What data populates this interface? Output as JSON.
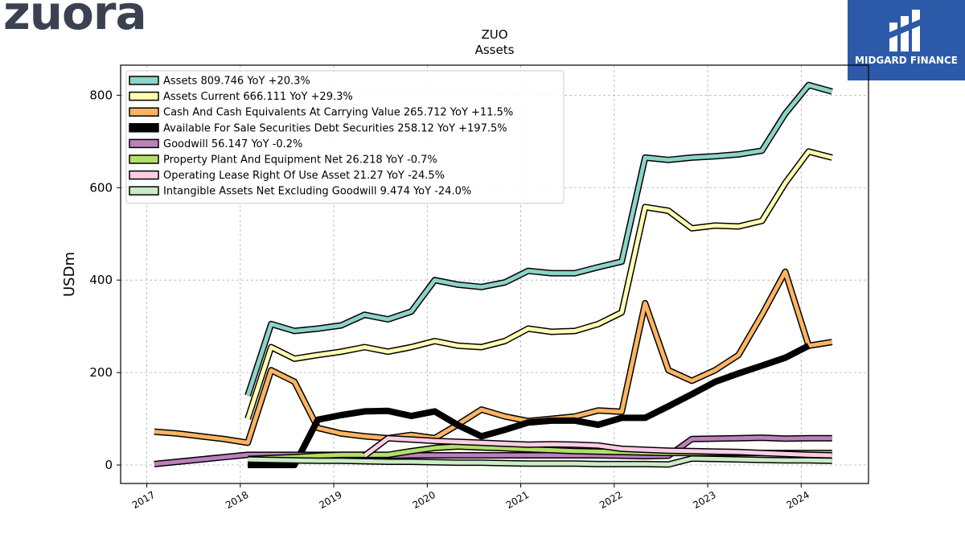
{
  "logo": {
    "text": "zuora"
  },
  "badge": {
    "text": "MIDGARD FINANCE"
  },
  "chart_data": {
    "type": "line",
    "title": "ZUO",
    "subtitle": "Assets",
    "xlabel": "",
    "ylabel": "USDm",
    "xlim": [
      2016.72,
      2024.72
    ],
    "ylim": [
      -40,
      865
    ],
    "x_ticks": [
      2017,
      2018,
      2019,
      2020,
      2021,
      2022,
      2023,
      2024
    ],
    "x_tick_labels": [
      "2017",
      "2018",
      "2019",
      "2020",
      "2021",
      "2022",
      "2023",
      "2024"
    ],
    "y_ticks": [
      0,
      200,
      400,
      600,
      800
    ],
    "y_tick_labels": [
      "0",
      "200",
      "400",
      "600",
      "800"
    ],
    "grid": true,
    "legend": "top-left",
    "series": [
      {
        "name": "Assets",
        "legend_label": "Assets  809.746 YoY +20.3%",
        "color": "#8dd3c7",
        "width": 5,
        "points": [
          [
            2018.08,
            150
          ],
          [
            2018.33,
            305
          ],
          [
            2018.58,
            290
          ],
          [
            2018.83,
            295
          ],
          [
            2019.08,
            302
          ],
          [
            2019.33,
            325
          ],
          [
            2019.58,
            315
          ],
          [
            2019.83,
            332
          ],
          [
            2020.08,
            400
          ],
          [
            2020.33,
            390
          ],
          [
            2020.58,
            385
          ],
          [
            2020.83,
            395
          ],
          [
            2021.08,
            420
          ],
          [
            2021.33,
            415
          ],
          [
            2021.58,
            415
          ],
          [
            2021.83,
            428
          ],
          [
            2022.08,
            440
          ],
          [
            2022.33,
            665
          ],
          [
            2022.58,
            660
          ],
          [
            2022.83,
            665
          ],
          [
            2023.08,
            668
          ],
          [
            2023.33,
            672
          ],
          [
            2023.58,
            680
          ],
          [
            2023.83,
            760
          ],
          [
            2024.08,
            822
          ],
          [
            2024.33,
            808
          ]
        ]
      },
      {
        "name": "Assets Current",
        "legend_label": "Assets Current  666.111 YoY +29.3%",
        "color": "#ffffb3",
        "width": 5,
        "points": [
          [
            2018.08,
            100
          ],
          [
            2018.33,
            255
          ],
          [
            2018.58,
            230
          ],
          [
            2018.83,
            238
          ],
          [
            2019.08,
            245
          ],
          [
            2019.33,
            255
          ],
          [
            2019.58,
            245
          ],
          [
            2019.83,
            255
          ],
          [
            2020.08,
            268
          ],
          [
            2020.33,
            258
          ],
          [
            2020.58,
            255
          ],
          [
            2020.83,
            268
          ],
          [
            2021.08,
            295
          ],
          [
            2021.33,
            288
          ],
          [
            2021.58,
            290
          ],
          [
            2021.83,
            305
          ],
          [
            2022.08,
            330
          ],
          [
            2022.33,
            558
          ],
          [
            2022.58,
            550
          ],
          [
            2022.83,
            512
          ],
          [
            2023.08,
            518
          ],
          [
            2023.33,
            516
          ],
          [
            2023.58,
            528
          ],
          [
            2023.83,
            610
          ],
          [
            2024.08,
            678
          ],
          [
            2024.33,
            665
          ]
        ]
      },
      {
        "name": "Cash And Cash Equivalents At Carrying Value",
        "legend_label": "Cash And Cash Equivalents At Carrying Value  265.712 YoY +11.5%",
        "color": "#fdb462",
        "width": 5,
        "points": [
          [
            2017.08,
            72
          ],
          [
            2017.33,
            68
          ],
          [
            2017.58,
            62
          ],
          [
            2017.83,
            56
          ],
          [
            2018.08,
            48
          ],
          [
            2018.33,
            205
          ],
          [
            2018.58,
            180
          ],
          [
            2018.83,
            80
          ],
          [
            2019.08,
            68
          ],
          [
            2019.33,
            62
          ],
          [
            2019.58,
            58
          ],
          [
            2019.83,
            65
          ],
          [
            2020.08,
            58
          ],
          [
            2020.33,
            88
          ],
          [
            2020.58,
            120
          ],
          [
            2020.83,
            105
          ],
          [
            2021.08,
            95
          ],
          [
            2021.33,
            100
          ],
          [
            2021.58,
            105
          ],
          [
            2021.83,
            118
          ],
          [
            2022.08,
            115
          ],
          [
            2022.33,
            350
          ],
          [
            2022.58,
            205
          ],
          [
            2022.83,
            182
          ],
          [
            2023.08,
            205
          ],
          [
            2023.33,
            238
          ],
          [
            2023.58,
            325
          ],
          [
            2023.83,
            418
          ],
          [
            2024.08,
            258
          ],
          [
            2024.33,
            266
          ]
        ]
      },
      {
        "name": "Available For Sale Securities Debt Securities",
        "legend_label": "Available For Sale Securities Debt Securities  258.12 YoY +197.5%",
        "color": "#000000",
        "width": 7,
        "points": [
          [
            2018.08,
            0
          ],
          [
            2018.33,
            0
          ],
          [
            2018.58,
            0
          ],
          [
            2018.83,
            98
          ],
          [
            2019.08,
            108
          ],
          [
            2019.33,
            116
          ],
          [
            2019.58,
            117
          ],
          [
            2019.83,
            106
          ],
          [
            2020.08,
            116
          ],
          [
            2020.33,
            86
          ],
          [
            2020.58,
            62
          ],
          [
            2020.83,
            76
          ],
          [
            2021.08,
            92
          ],
          [
            2021.33,
            96
          ],
          [
            2021.58,
            96
          ],
          [
            2021.83,
            87
          ],
          [
            2022.08,
            102
          ],
          [
            2022.33,
            102
          ],
          [
            2022.58,
            127
          ],
          [
            2022.83,
            153
          ],
          [
            2023.08,
            180
          ],
          [
            2023.33,
            198
          ],
          [
            2023.58,
            215
          ],
          [
            2023.83,
            232
          ],
          [
            2024.08,
            258
          ]
        ]
      },
      {
        "name": "Goodwill",
        "legend_label": "Goodwill  56.147 YoY -0.2%",
        "color": "#bc80bd",
        "width": 5,
        "points": [
          [
            2017.08,
            2
          ],
          [
            2017.33,
            7
          ],
          [
            2017.58,
            12
          ],
          [
            2017.83,
            17
          ],
          [
            2018.08,
            22
          ],
          [
            2018.33,
            22
          ],
          [
            2018.58,
            22
          ],
          [
            2018.83,
            22
          ],
          [
            2019.08,
            22
          ],
          [
            2019.33,
            22
          ],
          [
            2019.58,
            20
          ],
          [
            2019.83,
            21
          ],
          [
            2020.08,
            21
          ],
          [
            2020.33,
            21
          ],
          [
            2020.58,
            21
          ],
          [
            2020.83,
            21
          ],
          [
            2021.08,
            21
          ],
          [
            2021.33,
            21
          ],
          [
            2021.58,
            21
          ],
          [
            2021.83,
            21
          ],
          [
            2022.08,
            20
          ],
          [
            2022.33,
            19
          ],
          [
            2022.58,
            20
          ],
          [
            2022.83,
            56
          ],
          [
            2023.08,
            57
          ],
          [
            2023.33,
            58
          ],
          [
            2023.58,
            59
          ],
          [
            2023.83,
            57
          ],
          [
            2024.08,
            58
          ],
          [
            2024.33,
            58
          ]
        ]
      },
      {
        "name": "Property Plant And Equipment Net",
        "legend_label": "Property Plant And Equipment Net  26.218 YoY -0.7%",
        "color": "#b3de69",
        "width": 5,
        "points": [
          [
            2018.08,
            13
          ],
          [
            2018.33,
            15
          ],
          [
            2018.58,
            17
          ],
          [
            2018.83,
            20
          ],
          [
            2019.08,
            22
          ],
          [
            2019.33,
            22
          ],
          [
            2019.58,
            22
          ],
          [
            2019.83,
            30
          ],
          [
            2020.08,
            37
          ],
          [
            2020.33,
            40
          ],
          [
            2020.58,
            38
          ],
          [
            2020.83,
            36
          ],
          [
            2021.08,
            34
          ],
          [
            2021.33,
            32
          ],
          [
            2021.58,
            30
          ],
          [
            2021.83,
            29
          ],
          [
            2022.08,
            28
          ],
          [
            2022.33,
            27
          ],
          [
            2022.58,
            26
          ],
          [
            2022.83,
            26
          ],
          [
            2023.08,
            26
          ],
          [
            2023.33,
            26
          ],
          [
            2023.58,
            26
          ],
          [
            2023.83,
            26
          ],
          [
            2024.08,
            26
          ],
          [
            2024.33,
            26
          ]
        ]
      },
      {
        "name": "Operating Lease Right Of Use Asset",
        "legend_label": "Operating Lease Right Of Use Asset  21.27 YoY -24.5%",
        "color": "#fccde5",
        "width": 5,
        "points": [
          [
            2019.33,
            20
          ],
          [
            2019.58,
            58
          ],
          [
            2019.83,
            55
          ],
          [
            2020.08,
            52
          ],
          [
            2020.33,
            50
          ],
          [
            2020.58,
            48
          ],
          [
            2020.83,
            46
          ],
          [
            2021.08,
            44
          ],
          [
            2021.33,
            45
          ],
          [
            2021.58,
            44
          ],
          [
            2021.83,
            42
          ],
          [
            2022.08,
            35
          ],
          [
            2022.33,
            33
          ],
          [
            2022.58,
            31
          ],
          [
            2022.83,
            30
          ],
          [
            2023.08,
            29
          ],
          [
            2023.33,
            28
          ],
          [
            2023.58,
            26
          ],
          [
            2023.83,
            24
          ],
          [
            2024.08,
            22
          ],
          [
            2024.33,
            21
          ]
        ]
      },
      {
        "name": "Intangible Assets Net Excluding Goodwill",
        "legend_label": "Intangible Assets Net Excluding Goodwill  9.474 YoY -24.0%",
        "color": "#ccebc5",
        "width": 5,
        "points": [
          [
            2018.08,
            12
          ],
          [
            2018.33,
            11
          ],
          [
            2018.58,
            10
          ],
          [
            2018.83,
            9
          ],
          [
            2019.08,
            9
          ],
          [
            2019.33,
            8
          ],
          [
            2019.58,
            7
          ],
          [
            2019.83,
            7
          ],
          [
            2020.08,
            6
          ],
          [
            2020.33,
            5
          ],
          [
            2020.58,
            5
          ],
          [
            2020.83,
            4
          ],
          [
            2021.08,
            3
          ],
          [
            2021.33,
            3
          ],
          [
            2021.58,
            3
          ],
          [
            2021.83,
            2
          ],
          [
            2022.08,
            2
          ],
          [
            2022.33,
            2
          ],
          [
            2022.58,
            1
          ],
          [
            2022.83,
            14
          ],
          [
            2023.08,
            13
          ],
          [
            2023.33,
            12
          ],
          [
            2023.58,
            11
          ],
          [
            2023.83,
            10
          ],
          [
            2024.08,
            10
          ],
          [
            2024.33,
            9
          ]
        ]
      }
    ]
  }
}
